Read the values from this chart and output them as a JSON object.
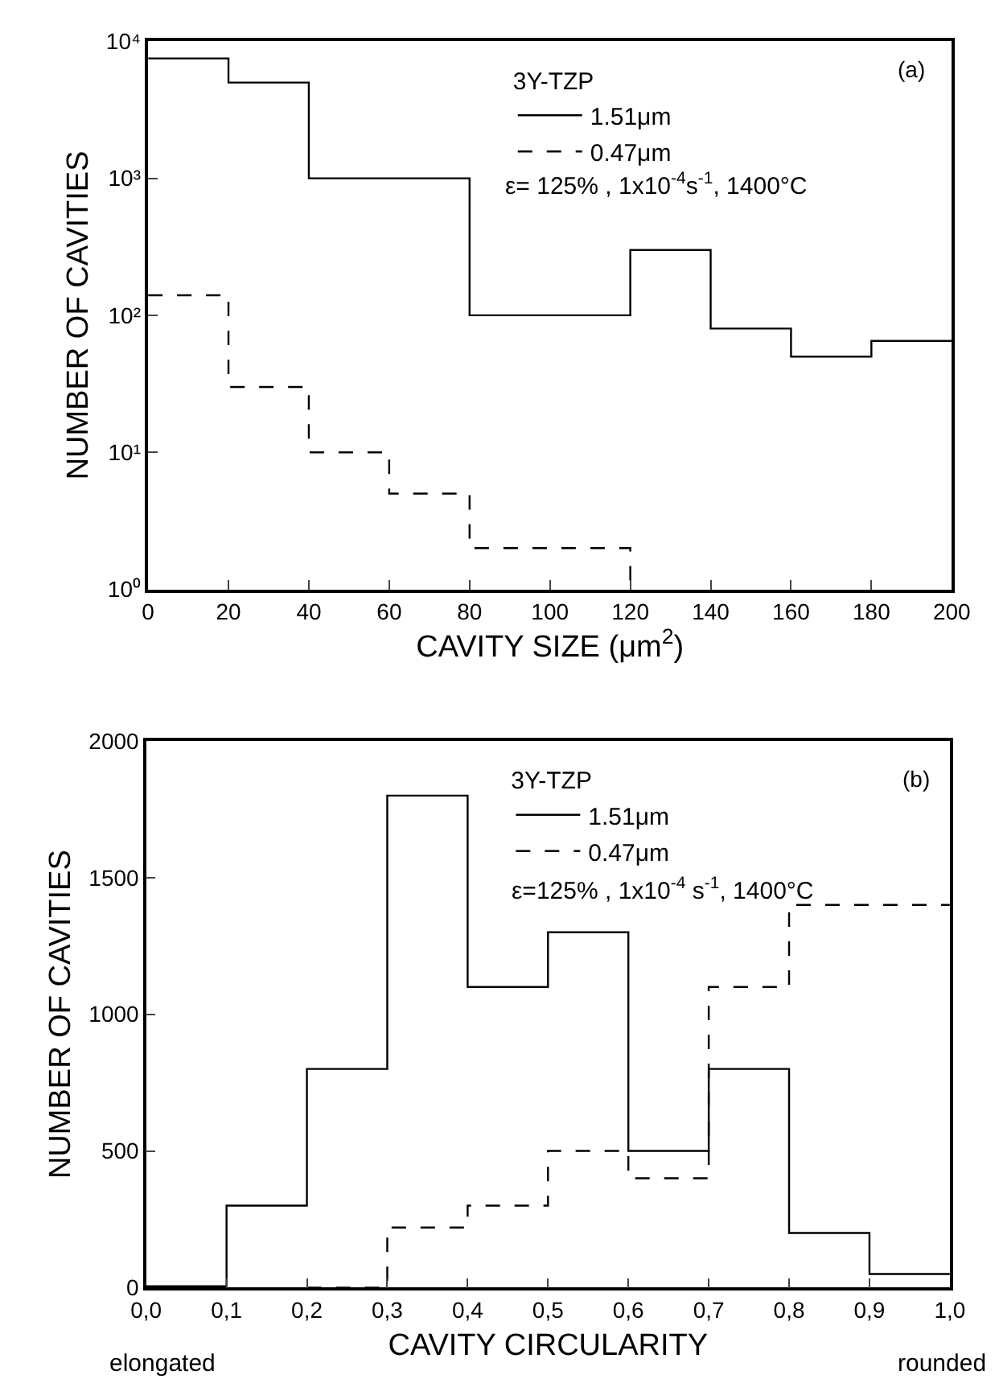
{
  "chart_data": [
    {
      "type": "step",
      "xlabel": "CAVITY SIZE (μm$^{2}$)",
      "ylabel": "NUMBER OF CAVITIES",
      "legend_title": "3Y-TZP",
      "log": "y",
      "series": [
        {
          "name": "1.51μm",
          "color": "#000000",
          "line_style": "solid",
          "x": [
            0,
            20,
            40,
            60,
            80,
            100,
            120,
            140,
            160,
            180,
            200
          ],
          "values": [
            7500,
            5000,
            1000,
            1000,
            100,
            100,
            300,
            80,
            50,
            65,
            65
          ]
        },
        {
          "name": "0.47μm",
          "color": "#000000",
          "line_style": "dashed",
          "x": [
            0,
            20,
            40,
            60,
            80,
            100,
            120
          ],
          "values": [
            140,
            30,
            10,
            5,
            2,
            2,
            1
          ]
        }
      ],
      "xlim": [
        0,
        200
      ],
      "xticks": [
        0,
        20,
        40,
        60,
        80,
        100,
        120,
        140,
        160,
        180,
        200
      ],
      "ylim": [
        1,
        10000
      ],
      "yticks": [
        {
          "value": 1,
          "label": "10⁰"
        },
        {
          "value": 10,
          "label": "10¹"
        },
        {
          "value": 100,
          "label": "10²"
        },
        {
          "value": 1000,
          "label": "10³"
        },
        {
          "value": 10000,
          "label": "10⁴"
        }
      ],
      "legend": "top right",
      "annotations": [
        "ε= 125% , 1x10$^{-4}$s$^{-1}$, 1400°C",
        "(a)"
      ]
    },
    {
      "type": "step",
      "xlabel": "CAVITY CIRCULARITY",
      "ylabel": "NUMBER OF CAVITIES",
      "legend_title": "3Y-TZP",
      "series": [
        {
          "name": "1.51μm",
          "color": "#000000",
          "line_style": "solid",
          "x": [
            0,
            0.1,
            0.2,
            0.3,
            0.4,
            0.5,
            0.6,
            0.7,
            0.8,
            0.9,
            1.0
          ],
          "values": [
            5,
            300,
            800,
            1800,
            1100,
            1300,
            500,
            800,
            200,
            50,
            50
          ]
        },
        {
          "name": "0.47μm",
          "color": "#000000",
          "line_style": "dashed",
          "x": [
            0.2,
            0.3,
            0.4,
            0.5,
            0.6,
            0.7,
            0.8,
            0.9,
            1.0
          ],
          "values": [
            0,
            220,
            300,
            500,
            400,
            1100,
            1400,
            1400,
            1400
          ]
        }
      ],
      "xlim": [
        0,
        1.0
      ],
      "xticks": [
        {
          "value": 0,
          "label": "0,0"
        },
        {
          "value": 0.1,
          "label": "0,1"
        },
        {
          "value": 0.2,
          "label": "0,2"
        },
        {
          "value": 0.3,
          "label": "0,3"
        },
        {
          "value": 0.4,
          "label": "0,4"
        },
        {
          "value": 0.5,
          "label": "0,5"
        },
        {
          "value": 0.6,
          "label": "0,6"
        },
        {
          "value": 0.7,
          "label": "0,7"
        },
        {
          "value": 0.8,
          "label": "0,8"
        },
        {
          "value": 0.9,
          "label": "0,9"
        },
        {
          "value": 1.0,
          "label": "1,0"
        }
      ],
      "ylim": [
        0,
        2000
      ],
      "yticks": [
        0,
        500,
        1000,
        1500,
        2000
      ],
      "legend": "top right",
      "annotations": [
        "ε=125% , 1x10$^{-4}$ s$^{-1}$, 1400°C",
        "(b)",
        "elongated",
        "rounded"
      ]
    }
  ]
}
